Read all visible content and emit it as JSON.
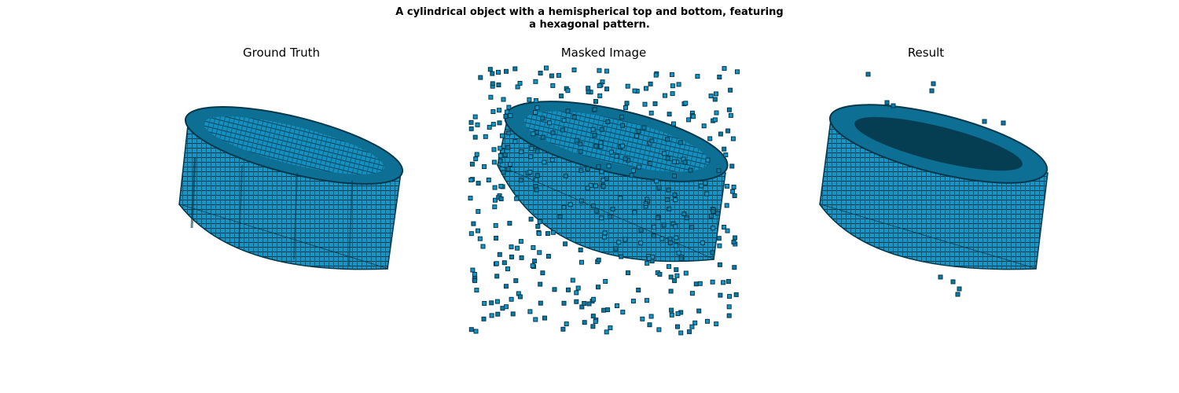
{
  "figure": {
    "suptitle_line1": "A cylindrical object with a hemispherical top and bottom, featuring",
    "suptitle_line2": "a hexagonal pattern."
  },
  "panels": [
    {
      "title": "Ground Truth"
    },
    {
      "title": "Masked Image"
    },
    {
      "title": "Result"
    }
  ],
  "colors": {
    "voxel_face": "#1aa3d6",
    "voxel_dark": "#0b5f7d",
    "voxel_edge": "#04384c"
  }
}
